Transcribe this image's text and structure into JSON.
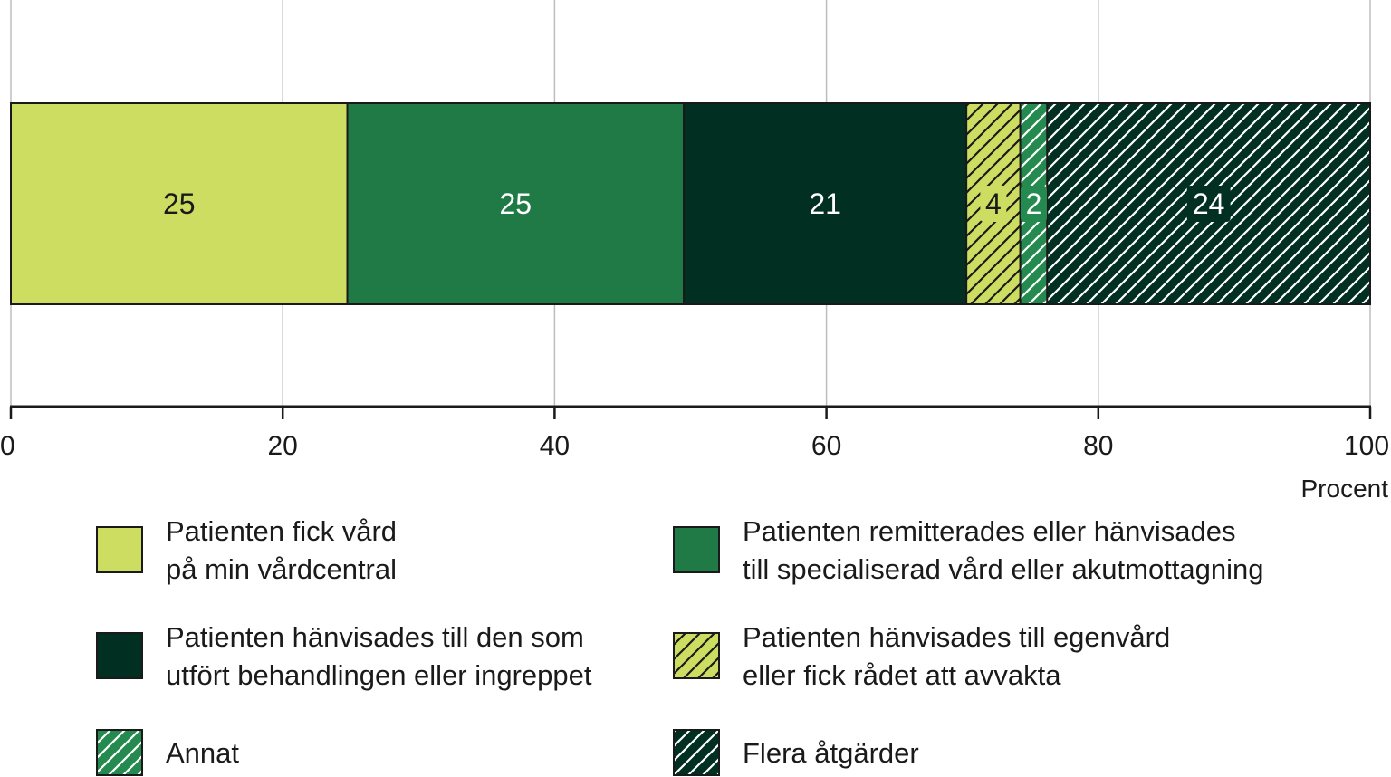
{
  "chart_data": {
    "type": "bar",
    "orientation": "horizontal",
    "stacked": true,
    "x_axis": {
      "min": 0,
      "max": 100,
      "ticks": [
        "0",
        "20",
        "40",
        "60",
        "80",
        "100"
      ],
      "unit_label": "Procent"
    },
    "grid": true,
    "legend_position": "bottom",
    "series": [
      {
        "name": "Patienten fick vård på min vårdcentral",
        "legend_lines": [
          "Patienten fick vård",
          "på min vårdcentral"
        ],
        "value": 25,
        "label": "25",
        "color": "#cddd62",
        "hatched": false,
        "label_color": "#1a1a1a"
      },
      {
        "name": "Patienten remitterades eller hänvisades till specialiserad vård eller akutmottagning",
        "legend_lines": [
          "Patienten remitterades eller hänvisades",
          "till specialiserad vård eller akutmottagning"
        ],
        "value": 25,
        "label": "25",
        "color": "#1f7a46",
        "hatched": false,
        "label_color": "#ffffff"
      },
      {
        "name": "Patienten hänvisades till den som utfört behandlingen eller ingreppet",
        "legend_lines": [
          "Patienten hänvisades till den som",
          "utfört behandlingen eller ingreppet"
        ],
        "value": 21,
        "label": "21",
        "color": "#013022",
        "hatched": false,
        "label_color": "#ffffff"
      },
      {
        "name": "Patienten hänvisades till egenvård eller fick rådet att avvakta",
        "legend_lines": [
          "Patienten hänvisades till egenvård",
          "eller fick rådet att avvakta"
        ],
        "value": 4,
        "label": "4",
        "color": "#cddd62",
        "hatched": true,
        "hatch_color": "#1a1a1a",
        "label_color": "#1a1a1a"
      },
      {
        "name": "Annat",
        "legend_lines": [
          "Annat"
        ],
        "value": 2,
        "label": "2",
        "color": "#258a4f",
        "hatched": true,
        "hatch_color": "#ffffff",
        "label_color": "#ffffff"
      },
      {
        "name": "Flera åtgärder",
        "legend_lines": [
          "Flera åtgärder"
        ],
        "value": 24,
        "label": "24",
        "color": "#013022",
        "hatched": true,
        "hatch_color": "#ffffff",
        "label_color": "#ffffff"
      }
    ]
  }
}
